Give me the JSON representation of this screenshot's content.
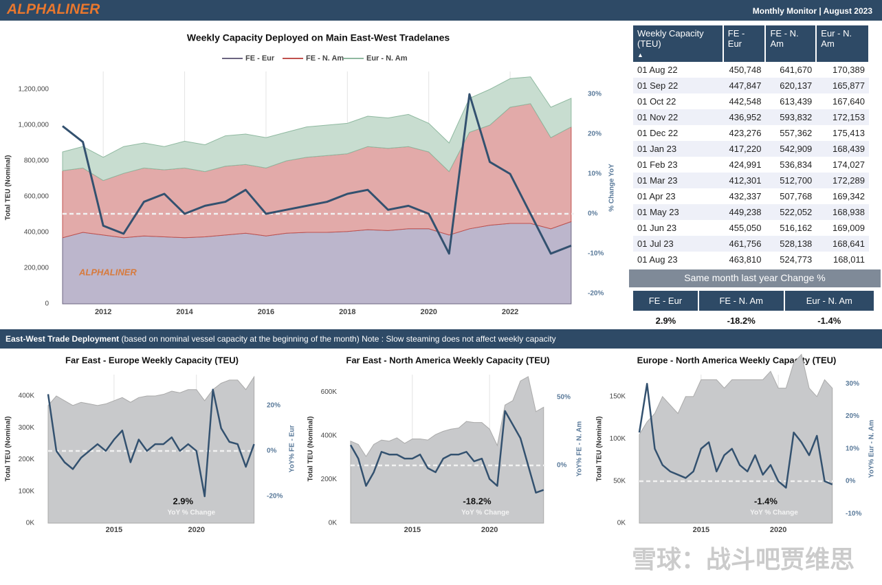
{
  "header": {
    "logo": "ALPHALINER",
    "title": "Monthly Monitor | August 2023"
  },
  "table": {
    "columns": [
      "Weekly Capacity (TEU)",
      "FE - Eur",
      "FE - N. Am",
      "Eur - N. Am"
    ],
    "rows": [
      [
        "01 Aug 22",
        "450,748",
        "641,670",
        "170,389"
      ],
      [
        "01 Sep 22",
        "447,847",
        "620,137",
        "165,877"
      ],
      [
        "01 Oct 22",
        "442,548",
        "613,439",
        "167,640"
      ],
      [
        "01 Nov 22",
        "436,952",
        "593,832",
        "172,153"
      ],
      [
        "01 Dec 22",
        "423,276",
        "557,362",
        "175,413"
      ],
      [
        "01 Jan 23",
        "417,220",
        "542,909",
        "168,439"
      ],
      [
        "01 Feb 23",
        "424,991",
        "536,834",
        "174,027"
      ],
      [
        "01 Mar 23",
        "412,301",
        "512,700",
        "172,289"
      ],
      [
        "01 Apr 23",
        "432,337",
        "507,768",
        "169,342"
      ],
      [
        "01 May 23",
        "449,238",
        "522,052",
        "168,938"
      ],
      [
        "01 Jun 23",
        "455,050",
        "516,162",
        "169,009"
      ],
      [
        "01 Jul 23",
        "461,756",
        "528,138",
        "168,641"
      ],
      [
        "01 Aug 23",
        "463,810",
        "524,773",
        "168,011"
      ]
    ]
  },
  "change": {
    "title": "Same month last year Change %",
    "columns": [
      "FE - Eur",
      "FE - N. Am",
      "Eur - N. Am"
    ],
    "values": [
      "2.9%",
      "-18.2%",
      "-1.4%"
    ]
  },
  "banner": {
    "title": "East-West Trade Deployment",
    "text": "(based on nominal vessel capacity at the beginning of the month) Note : Slow steaming does not affect weekly capacity"
  },
  "watermark": "雪球：战斗吧贾维思",
  "chart_data": [
    {
      "type": "stacked_area",
      "title": "Weekly Capacity Deployed on Main East-West Tradelanes",
      "logo": "ALPHALINER",
      "ylabel": "Total TEU (Nominal)",
      "y2label": "% Change YoY",
      "x": [
        2011,
        2011.5,
        2012,
        2012.5,
        2013,
        2013.5,
        2014,
        2014.5,
        2015,
        2015.5,
        2016,
        2016.5,
        2017,
        2017.5,
        2018,
        2018.5,
        2019,
        2019.5,
        2020,
        2020.5,
        2021,
        2021.5,
        2022,
        2022.5,
        2023,
        2023.5
      ],
      "xlim": [
        2011,
        2023.57
      ],
      "xticks": [
        2012,
        2014,
        2016,
        2018,
        2020,
        2022
      ],
      "ylim": [
        0,
        1300000
      ],
      "yticks": [
        0,
        {
          "value": 200000,
          "label": "200,000"
        },
        {
          "value": 400000,
          "label": "400,000"
        },
        {
          "value": 600000,
          "label": "600,000"
        },
        {
          "value": 800000,
          "label": "800,000"
        },
        {
          "value": 1000000,
          "label": "1,000,000"
        },
        {
          "value": 1200000,
          "label": "1,200,000"
        }
      ],
      "y2lim": [
        -22.6,
        35.7
      ],
      "y2ticks": [
        {
          "value": -20,
          "label": "-20%"
        },
        {
          "value": -10,
          "label": "-10%"
        },
        {
          "value": 0,
          "label": "0%"
        },
        {
          "value": 10,
          "label": "10%"
        },
        {
          "value": 20,
          "label": "20%"
        },
        {
          "value": 30,
          "label": "30%"
        }
      ],
      "series": [
        {
          "name": "FE - Eur",
          "color": "#bcb6cc",
          "line_color": "#6b6480",
          "values": [
            370000,
            400000,
            385000,
            370000,
            380000,
            375000,
            370000,
            375000,
            385000,
            395000,
            380000,
            395000,
            400000,
            400000,
            405000,
            415000,
            410000,
            420000,
            420000,
            385000,
            420000,
            440000,
            450000,
            450000,
            420000,
            460000
          ]
        },
        {
          "name": "FE - N. Am",
          "color": "#e2aaa9",
          "line_color": "#c0504d",
          "values": [
            375000,
            360000,
            305000,
            360000,
            380000,
            375000,
            390000,
            365000,
            385000,
            385000,
            380000,
            405000,
            420000,
            430000,
            435000,
            465000,
            460000,
            460000,
            430000,
            355000,
            540000,
            560000,
            650000,
            670000,
            510000,
            530000
          ]
        },
        {
          "name": "Eur - N. Am",
          "color": "#c8ddd0",
          "line_color": "#8fb9a0",
          "values": [
            105000,
            120000,
            130000,
            150000,
            140000,
            130000,
            150000,
            150000,
            170000,
            170000,
            170000,
            160000,
            170000,
            170000,
            170000,
            170000,
            170000,
            180000,
            160000,
            160000,
            190000,
            200000,
            160000,
            150000,
            170000,
            160000
          ]
        },
        {
          "color": "#33516f",
          "axis": "y2",
          "values": [
            22,
            18,
            -3,
            -5,
            3,
            5,
            0,
            2,
            3,
            6,
            0,
            1,
            2,
            3,
            5,
            6,
            1,
            2,
            0,
            -10,
            30,
            13,
            10,
            0,
            -10,
            -8
          ]
        }
      ]
    },
    {
      "type": "area_line",
      "title": "Far East - Europe Weekly Capacity (TEU)",
      "ylabel": "Total TEU (Nominal)",
      "y2label": "YoY% FE - Eur",
      "annotation": "2.9%",
      "annotation_label": "YoY % Change",
      "x": [
        2011,
        2011.5,
        2012,
        2012.5,
        2013,
        2013.5,
        2014,
        2014.5,
        2015,
        2015.5,
        2016,
        2016.5,
        2017,
        2017.5,
        2018,
        2018.5,
        2019,
        2019.5,
        2020,
        2020.5,
        2021,
        2021.5,
        2022,
        2022.5,
        2023,
        2023.5
      ],
      "xlim": [
        2011,
        2023.6
      ],
      "xticks": [
        2015,
        2020
      ],
      "ylim": [
        0,
        467000
      ],
      "yticks": [
        {
          "value": 0,
          "label": "0K"
        },
        {
          "value": 100000,
          "label": "100K"
        },
        {
          "value": 200000,
          "label": "200K"
        },
        {
          "value": 300000,
          "label": "300K"
        },
        {
          "value": 400000,
          "label": "400K"
        }
      ],
      "y2lim": [
        -31.8,
        33.6
      ],
      "y2ticks": [
        {
          "value": -20,
          "label": "-20%"
        },
        {
          "value": 0,
          "label": "0%"
        },
        {
          "value": 20,
          "label": "20%"
        }
      ],
      "series": [
        {
          "color": "#c8c9cb",
          "values": [
            370000,
            400000,
            385000,
            370000,
            380000,
            375000,
            370000,
            375000,
            385000,
            395000,
            380000,
            395000,
            400000,
            400000,
            405000,
            415000,
            410000,
            420000,
            420000,
            385000,
            420000,
            440000,
            450000,
            450000,
            420000,
            460000
          ]
        },
        {
          "color": "#33516f",
          "axis": "y2",
          "values": [
            25,
            0,
            -5,
            -8,
            -3,
            0,
            3,
            0,
            5,
            9,
            -5,
            5,
            0,
            3,
            3,
            6,
            0,
            3,
            0,
            -20,
            27,
            10,
            4,
            3,
            -7,
            3
          ]
        }
      ]
    },
    {
      "type": "area_line",
      "title": "Far East - North America Weekly Capacity (TEU)",
      "ylabel": "Total TEU (Nominal)",
      "y2label": "YoY% FE - N. Am",
      "annotation": "-18.2%",
      "annotation_label": "YoY % Change",
      "x": [
        2011,
        2011.5,
        2012,
        2012.5,
        2013,
        2013.5,
        2014,
        2014.5,
        2015,
        2015.5,
        2016,
        2016.5,
        2017,
        2017.5,
        2018,
        2018.5,
        2019,
        2019.5,
        2020,
        2020.5,
        2021,
        2021.5,
        2022,
        2022.5,
        2023,
        2023.5
      ],
      "xlim": [
        2011,
        2023.6
      ],
      "xticks": [
        2015,
        2020
      ],
      "ylim": [
        0,
        679000
      ],
      "yticks": [
        {
          "value": 0,
          "label": "0K"
        },
        {
          "value": 200000,
          "label": "200K"
        },
        {
          "value": 400000,
          "label": "400K"
        },
        {
          "value": 600000,
          "label": "600K"
        }
      ],
      "y2lim": [
        -42.4,
        66.7
      ],
      "y2ticks": [
        {
          "value": 0,
          "label": "0%"
        },
        {
          "value": 50,
          "label": "50%"
        }
      ],
      "series": [
        {
          "color": "#c8c9cb",
          "values": [
            375000,
            360000,
            305000,
            360000,
            380000,
            375000,
            390000,
            365000,
            385000,
            385000,
            380000,
            405000,
            420000,
            430000,
            435000,
            465000,
            460000,
            460000,
            430000,
            355000,
            540000,
            560000,
            650000,
            670000,
            510000,
            530000
          ]
        },
        {
          "color": "#33516f",
          "axis": "y2",
          "values": [
            15,
            5,
            -15,
            -5,
            10,
            8,
            8,
            5,
            5,
            8,
            -2,
            -5,
            5,
            8,
            8,
            10,
            3,
            5,
            -10,
            -15,
            40,
            30,
            20,
            0,
            -20,
            -18
          ]
        }
      ]
    },
    {
      "type": "area_line",
      "title": "Europe - North America Weekly Capacity (TEU)",
      "ylabel": "Total TEU (Nominal)",
      "y2label": "YoY% Eur - N. Am",
      "annotation": "-1.4%",
      "annotation_label": "YoY % Change",
      "x": [
        2011,
        2011.5,
        2012,
        2012.5,
        2013,
        2013.5,
        2014,
        2014.5,
        2015,
        2015.5,
        2016,
        2016.5,
        2017,
        2017.5,
        2018,
        2018.5,
        2019,
        2019.5,
        2020,
        2020.5,
        2021,
        2021.5,
        2022,
        2022.5,
        2023,
        2023.5
      ],
      "xlim": [
        2011,
        2023.6
      ],
      "xticks": [
        2015,
        2020
      ],
      "ylim": [
        0,
        176000
      ],
      "yticks": [
        {
          "value": 0,
          "label": "0K"
        },
        {
          "value": 50000,
          "label": "50K"
        },
        {
          "value": 100000,
          "label": "100K"
        },
        {
          "value": 150000,
          "label": "150K"
        }
      ],
      "y2lim": [
        -12.9,
        32.8
      ],
      "y2ticks": [
        {
          "value": -10,
          "label": "-10%"
        },
        {
          "value": 0,
          "label": "0%"
        },
        {
          "value": 10,
          "label": "10%"
        },
        {
          "value": 20,
          "label": "20%"
        },
        {
          "value": 30,
          "label": "30%"
        }
      ],
      "series": [
        {
          "color": "#c8c9cb",
          "values": [
            105000,
            120000,
            130000,
            150000,
            140000,
            130000,
            150000,
            150000,
            170000,
            170000,
            170000,
            160000,
            170000,
            170000,
            170000,
            170000,
            170000,
            180000,
            160000,
            160000,
            190000,
            200000,
            160000,
            150000,
            170000,
            160000
          ]
        },
        {
          "color": "#33516f",
          "axis": "y2",
          "values": [
            15,
            30,
            10,
            5,
            3,
            2,
            1,
            3,
            10,
            12,
            3,
            8,
            10,
            5,
            3,
            8,
            2,
            5,
            0,
            -2,
            15,
            12,
            8,
            14,
            0,
            -1
          ]
        }
      ]
    }
  ]
}
